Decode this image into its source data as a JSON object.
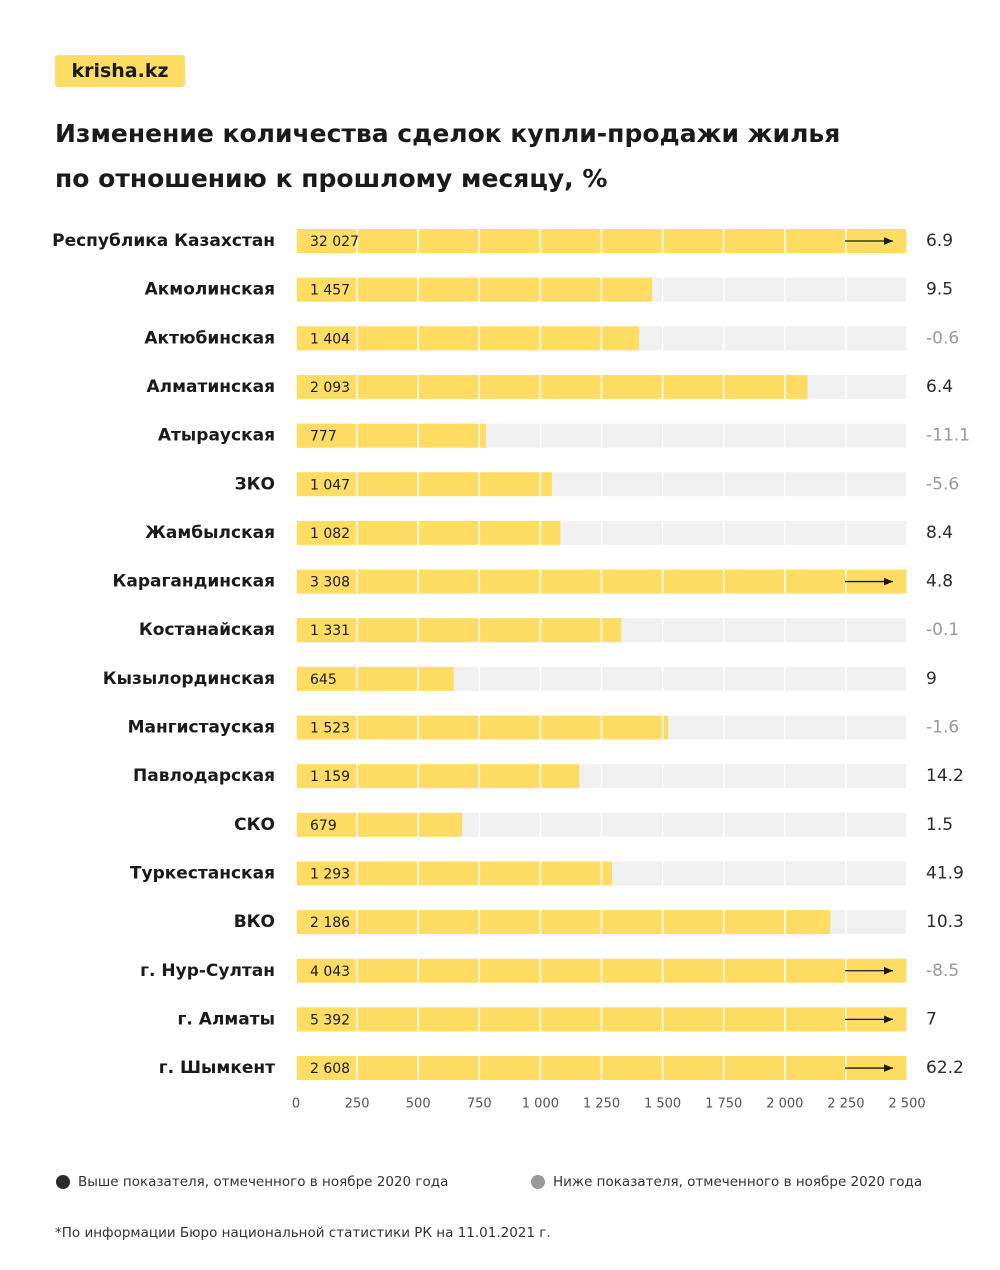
{
  "brand": "krisha.kz",
  "chart_data": {
    "type": "bar",
    "orientation": "horizontal",
    "title": [
      "Изменение количества сделок купли-продажи жилья",
      "по отношению к прошлому месяцу, %"
    ],
    "categories": [
      "Республика Казахстан",
      "Акмолинская",
      "Актюбинская",
      "Алматинская",
      "Атырауская",
      "ЗКО",
      "Жамбылская",
      "Карагандинская",
      "Костанайская",
      "Кызылординская",
      "Мангистауская",
      "Павлодарская",
      "СКО",
      "Туркестанская",
      "ВКО",
      "г. Нур-Султан",
      "г. Алматы",
      "г. Шымкент"
    ],
    "values": [
      32027,
      1457,
      1404,
      2093,
      777,
      1047,
      1082,
      3308,
      1331,
      645,
      1523,
      1159,
      679,
      1293,
      2186,
      4043,
      5392,
      2608
    ],
    "value_labels": [
      "32 027",
      "1 457",
      "1 404",
      "2 093",
      "777",
      "1 047",
      "1 082",
      "3 308",
      "1 331",
      "645",
      "1 523",
      "1 159",
      "679",
      "1 293",
      "2 186",
      "4 043",
      "5 392",
      "2 608"
    ],
    "change": [
      6.9,
      9.5,
      -0.6,
      6.4,
      -11.1,
      -5.6,
      8.4,
      4.8,
      -0.1,
      9,
      -1.6,
      14.2,
      1.5,
      41.9,
      10.3,
      -8.5,
      7,
      62.2
    ],
    "color": "#ffdd63",
    "track_color": "#f1f1f1",
    "xlim": [
      0,
      2500
    ],
    "xticks": [
      0,
      250,
      500,
      750,
      {
        "value": 1000,
        "label": "1 000"
      },
      {
        "value": 1250,
        "label": "1 250"
      },
      {
        "value": 1500,
        "label": "1 500"
      },
      {
        "value": 1750,
        "label": "1 750"
      },
      {
        "value": 2000,
        "label": "2 000"
      },
      {
        "value": 2250,
        "label": "2 250"
      },
      {
        "value": 2500,
        "label": "2 500"
      }
    ],
    "grid": true,
    "legend": [
      {
        "label": "Выше показателя, отмеченного в ноябре 2020 года",
        "color": "#2b2b2b"
      },
      {
        "label": "Ниже показателя, отмеченного в ноябре 2020 года",
        "color": "#9a9a9a"
      }
    ],
    "note": "*По информации Бюро национальной статистики РК на 11.01.2021 г."
  }
}
